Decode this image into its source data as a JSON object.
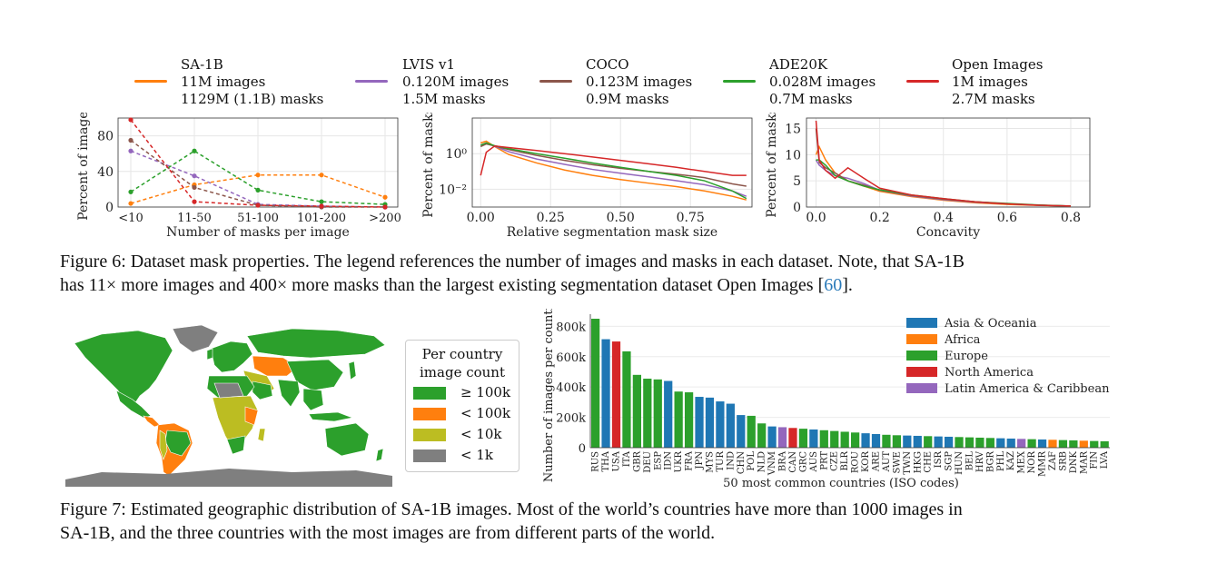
{
  "dataset_legend": [
    {
      "name": "SA-1B",
      "images": "11M images",
      "masks": "1129M (1.1B) masks",
      "color": "#ff7f0e"
    },
    {
      "name": "LVIS v1",
      "images": "0.120M images",
      "masks": "1.5M masks",
      "color": "#9467bd"
    },
    {
      "name": "COCO",
      "images": "0.123M images",
      "masks": "0.9M masks",
      "color": "#8c564b"
    },
    {
      "name": "ADE20K",
      "images": "0.028M images",
      "masks": "0.7M masks",
      "color": "#2ca02c"
    },
    {
      "name": "Open Images",
      "images": "1M images",
      "masks": "2.7M masks",
      "color": "#d62728"
    }
  ],
  "figure6_caption": {
    "line1": "Figure 6: Dataset mask properties. The legend references the number of images and masks in each dataset. Note, that SA-1B",
    "line2_a": "has 11× more images and 400× more masks than the largest existing segmentation dataset Open Images [",
    "cite": "60",
    "line2_b": "]."
  },
  "figure7_caption": {
    "line1": "Figure 7: Estimated geographic distribution of SA-1B images. Most of the world’s countries have more than 1000 images in",
    "line2": "SA-1B, and the three countries with the most images are from different parts of the world."
  },
  "map_legend": {
    "title_line1": "Per country",
    "title_line2": "image count",
    "items": [
      {
        "label": "≥ 100k",
        "color": "#2ca02c"
      },
      {
        "label": "< 100k",
        "color": "#ff7f0e"
      },
      {
        "label": "< 10k",
        "color": "#bcbd22"
      },
      {
        "label": "< 1k",
        "color": "#7f7f7f"
      }
    ]
  },
  "chart_data": [
    {
      "type": "line",
      "title": "",
      "xlabel": "Number of masks per image",
      "ylabel": "Percent of images",
      "categories": [
        "<10",
        "11-50",
        "51-100",
        "101-200",
        ">200"
      ],
      "ylim": [
        0,
        100
      ],
      "yticks": [
        "0",
        "40",
        "80"
      ],
      "series": [
        {
          "name": "SA-1B",
          "color": "#ff7f0e",
          "values": [
            4,
            25,
            36,
            36,
            11
          ]
        },
        {
          "name": "LVIS v1",
          "color": "#9467bd",
          "values": [
            63,
            35,
            3,
            1,
            0
          ]
        },
        {
          "name": "COCO",
          "color": "#8c564b",
          "values": [
            75,
            22,
            2,
            0,
            0
          ]
        },
        {
          "name": "ADE20K",
          "color": "#2ca02c",
          "values": [
            17,
            63,
            19,
            6,
            3
          ]
        },
        {
          "name": "Open Images",
          "color": "#d62728",
          "values": [
            98,
            6,
            2,
            1,
            0
          ]
        }
      ]
    },
    {
      "type": "line",
      "title": "",
      "xlabel": "Relative segmentation mask size",
      "ylabel": "Percent of masks",
      "yscale": "log",
      "xlim": [
        -0.03,
        0.97
      ],
      "ylim_log10": [
        -3,
        2
      ],
      "xticks": [
        "0.00",
        "0.25",
        "0.50",
        "0.75"
      ],
      "yticks_html": [
        "10⁻²",
        "10⁰"
      ],
      "x": [
        0.0,
        0.02,
        0.05,
        0.1,
        0.2,
        0.3,
        0.4,
        0.5,
        0.6,
        0.7,
        0.8,
        0.9,
        0.95
      ],
      "series": [
        {
          "name": "SA-1B",
          "color": "#ff7f0e",
          "values": [
            4,
            5,
            2.5,
            0.9,
            0.3,
            0.12,
            0.06,
            0.035,
            0.022,
            0.014,
            0.008,
            0.004,
            0.0025
          ]
        },
        {
          "name": "LVIS v1",
          "color": "#9467bd",
          "values": [
            3,
            4,
            2.6,
            1.3,
            0.5,
            0.25,
            0.13,
            0.08,
            0.05,
            0.03,
            0.018,
            0.008,
            0.004
          ]
        },
        {
          "name": "COCO",
          "color": "#8c564b",
          "values": [
            2.5,
            3.5,
            2.7,
            1.7,
            0.8,
            0.42,
            0.24,
            0.15,
            0.1,
            0.07,
            0.045,
            0.02,
            0.015
          ]
        },
        {
          "name": "ADE20K",
          "color": "#2ca02c",
          "values": [
            3,
            4,
            2.8,
            1.9,
            1.0,
            0.55,
            0.3,
            0.17,
            0.1,
            0.06,
            0.03,
            0.008,
            0.003
          ]
        },
        {
          "name": "Open Images",
          "color": "#d62728",
          "values": [
            0.06,
            1.2,
            2.7,
            2.2,
            1.5,
            1.0,
            0.65,
            0.42,
            0.27,
            0.17,
            0.1,
            0.06,
            0.06
          ]
        }
      ]
    },
    {
      "type": "line",
      "title": "",
      "xlabel": "Concavity",
      "ylabel": "Percent of masks",
      "xlim": [
        -0.03,
        0.86
      ],
      "ylim": [
        0,
        17
      ],
      "xticks": [
        "0.0",
        "0.2",
        "0.4",
        "0.6",
        "0.8"
      ],
      "yticks": [
        "0",
        "5",
        "10",
        "15"
      ],
      "x": [
        0.0,
        0.01,
        0.03,
        0.06,
        0.1,
        0.15,
        0.2,
        0.3,
        0.4,
        0.5,
        0.6,
        0.7,
        0.8
      ],
      "series": [
        {
          "name": "SA-1B",
          "color": "#ff7f0e",
          "values": [
            10,
            11.5,
            9,
            6.5,
            5,
            4,
            3,
            2,
            1.3,
            0.8,
            0.5,
            0.3,
            0.2
          ]
        },
        {
          "name": "LVIS v1",
          "color": "#9467bd",
          "values": [
            9,
            8,
            7,
            6,
            5.5,
            4.5,
            3.2,
            2.1,
            1.4,
            0.9,
            0.6,
            0.35,
            0.2
          ]
        },
        {
          "name": "COCO",
          "color": "#8c564b",
          "values": [
            15,
            8.5,
            7.5,
            6.5,
            5,
            4.2,
            3.2,
            2.2,
            1.5,
            1.0,
            0.6,
            0.35,
            0.2
          ]
        },
        {
          "name": "ADE20K",
          "color": "#2ca02c",
          "values": [
            9,
            9,
            8,
            6,
            5,
            4,
            3.3,
            2.3,
            1.6,
            1.0,
            0.7,
            0.4,
            0.2
          ]
        },
        {
          "name": "Open Images",
          "color": "#d62728",
          "values": [
            16.5,
            9,
            7,
            5.5,
            7.5,
            5.5,
            3.6,
            2.3,
            1.6,
            1.0,
            0.6,
            0.35,
            0.2
          ]
        }
      ]
    },
    {
      "type": "bar",
      "title": "",
      "xlabel": "50 most common countries (ISO codes)",
      "ylabel": "Number of images per country",
      "ylim": [
        0,
        880000
      ],
      "yticks": [
        {
          "v": 0,
          "t": "0"
        },
        {
          "v": 200000,
          "t": "200k"
        },
        {
          "v": 400000,
          "t": "400k"
        },
        {
          "v": 600000,
          "t": "600k"
        },
        {
          "v": 800000,
          "t": "800k"
        }
      ],
      "region_colors": {
        "Asia & Oceania": "#1f77b4",
        "Africa": "#ff7f0e",
        "Europe": "#2ca02c",
        "North America": "#d62728",
        "Latin America & Caribbean": "#9467bd"
      },
      "legend": [
        "Asia & Oceania",
        "Africa",
        "Europe",
        "North America",
        "Latin America & Caribbean"
      ],
      "categories": [
        "RUS",
        "THA",
        "USA",
        "ITA",
        "GBR",
        "DEU",
        "ESP",
        "IDN",
        "UKR",
        "FRA",
        "JPN",
        "MYS",
        "TUR",
        "IND",
        "CHN",
        "POL",
        "NLD",
        "VNM",
        "BRA",
        "CAN",
        "GRC",
        "AUS",
        "PRT",
        "CZE",
        "BLR",
        "ROU",
        "KOR",
        "ARE",
        "AUT",
        "SWE",
        "TWN",
        "HKG",
        "CHE",
        "ISR",
        "SGP",
        "HUN",
        "BEL",
        "HRV",
        "BGR",
        "PHL",
        "KAZ",
        "MEX",
        "NOR",
        "MMR",
        "ZAF",
        "SRB",
        "DNK",
        "MAR",
        "FIN",
        "LVA"
      ],
      "values": [
        850000,
        715000,
        700000,
        635000,
        480000,
        455000,
        450000,
        440000,
        370000,
        365000,
        335000,
        330000,
        305000,
        290000,
        215000,
        210000,
        160000,
        140000,
        135000,
        130000,
        125000,
        120000,
        115000,
        110000,
        105000,
        100000,
        95000,
        90000,
        85000,
        82000,
        80000,
        78000,
        76000,
        74000,
        72000,
        70000,
        68000,
        66000,
        64000,
        62000,
        60000,
        58000,
        56000,
        54000,
        52000,
        50000,
        48000,
        46000,
        44000,
        42000
      ],
      "regions": [
        "Europe",
        "Asia & Oceania",
        "North America",
        "Europe",
        "Europe",
        "Europe",
        "Europe",
        "Asia & Oceania",
        "Europe",
        "Europe",
        "Asia & Oceania",
        "Asia & Oceania",
        "Asia & Oceania",
        "Asia & Oceania",
        "Asia & Oceania",
        "Europe",
        "Europe",
        "Asia & Oceania",
        "Latin America & Caribbean",
        "North America",
        "Europe",
        "Asia & Oceania",
        "Europe",
        "Europe",
        "Europe",
        "Europe",
        "Asia & Oceania",
        "Asia & Oceania",
        "Europe",
        "Europe",
        "Asia & Oceania",
        "Asia & Oceania",
        "Europe",
        "Asia & Oceania",
        "Asia & Oceania",
        "Europe",
        "Europe",
        "Europe",
        "Europe",
        "Asia & Oceania",
        "Asia & Oceania",
        "Latin America & Caribbean",
        "Europe",
        "Asia & Oceania",
        "Africa",
        "Europe",
        "Europe",
        "Africa",
        "Europe",
        "Europe"
      ]
    }
  ]
}
